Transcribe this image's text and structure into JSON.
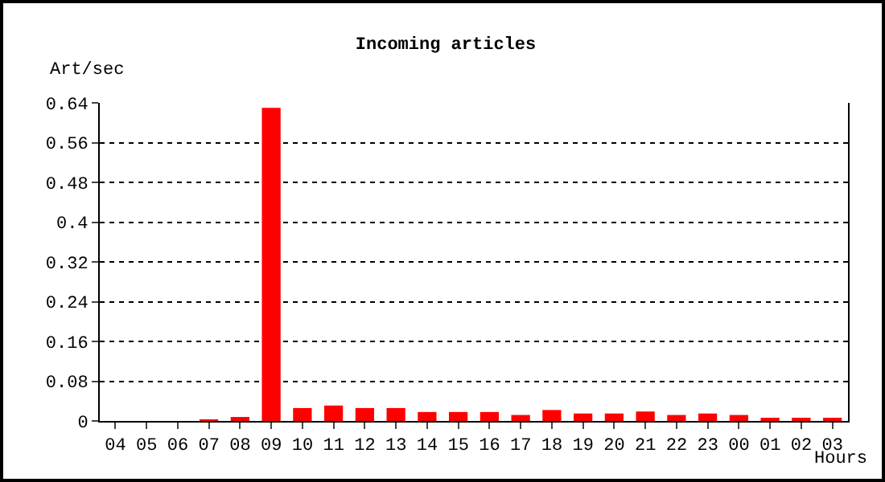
{
  "chart_data": {
    "type": "bar",
    "title": "Incoming articles",
    "ylabel": "Art/sec",
    "xlabel": "Hours",
    "categories": [
      "04",
      "05",
      "06",
      "07",
      "08",
      "09",
      "10",
      "11",
      "12",
      "13",
      "14",
      "15",
      "16",
      "17",
      "18",
      "19",
      "20",
      "21",
      "22",
      "23",
      "00",
      "01",
      "02",
      "03"
    ],
    "values": [
      0,
      0,
      0,
      0.003,
      0.008,
      0.63,
      0.026,
      0.031,
      0.026,
      0.026,
      0.018,
      0.018,
      0.018,
      0.012,
      0.022,
      0.015,
      0.015,
      0.019,
      0.012,
      0.015,
      0.012,
      0.004,
      0.004,
      0.004
    ],
    "color": "#ff0000",
    "ylim": [
      0,
      0.64
    ],
    "yticks": [
      0,
      0.08,
      0.16,
      0.24,
      0.32,
      0.4,
      0.48,
      0.56,
      0.64
    ],
    "grid": "y"
  }
}
